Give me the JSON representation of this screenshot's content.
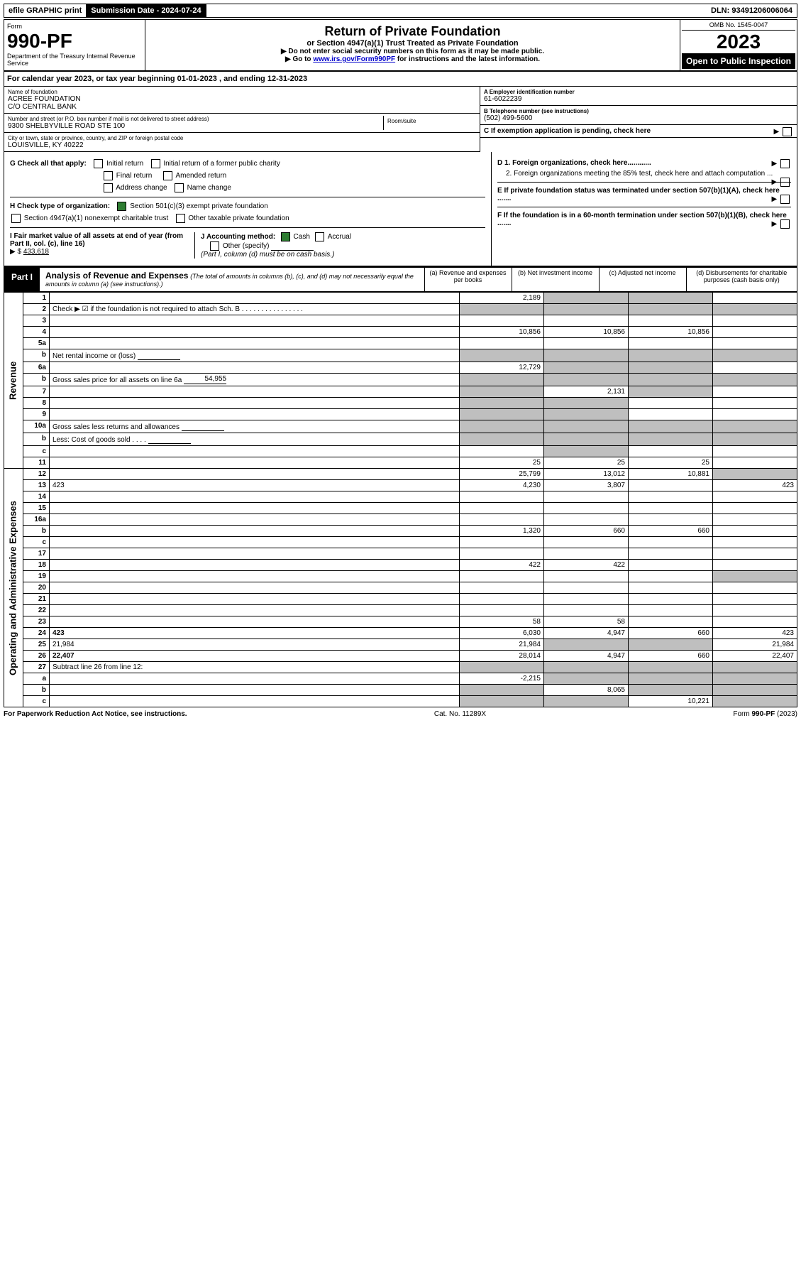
{
  "topbar": {
    "efile": "efile GRAPHIC print",
    "submission_label": "Submission Date - 2024-07-24",
    "dln": "DLN: 93491206006064"
  },
  "header": {
    "form_word": "Form",
    "form_number": "990-PF",
    "dept": "Department of the Treasury\nInternal Revenue Service",
    "title": "Return of Private Foundation",
    "subtitle": "or Section 4947(a)(1) Trust Treated as Private Foundation",
    "note1": "▶ Do not enter social security numbers on this form as it may be made public.",
    "note2_pre": "▶ Go to ",
    "note2_link": "www.irs.gov/Form990PF",
    "note2_post": " for instructions and the latest information.",
    "omb": "OMB No. 1545-0047",
    "year": "2023",
    "open": "Open to Public Inspection"
  },
  "calendar": {
    "text_pre": "For calendar year 2023, or tax year beginning ",
    "begin": "01-01-2023",
    "text_mid": " , and ending ",
    "end": "12-31-2023"
  },
  "info": {
    "name_lbl": "Name of foundation",
    "name1": "ACREE FOUNDATION",
    "name2": "C/O CENTRAL BANK",
    "addr_lbl": "Number and street (or P.O. box number if mail is not delivered to street address)",
    "addr": "9300 SHELBYVILLE ROAD STE 100",
    "room_lbl": "Room/suite",
    "city_lbl": "City or town, state or province, country, and ZIP or foreign postal code",
    "city": "LOUISVILLE, KY  40222",
    "a_lbl": "A Employer identification number",
    "a_val": "61-6022239",
    "b_lbl": "B Telephone number (see instructions)",
    "b_val": "(502) 499-5600",
    "c_lbl": "C If exemption application is pending, check here"
  },
  "g": {
    "label": "G Check all that apply:",
    "opts": [
      "Initial return",
      "Initial return of a former public charity",
      "Final return",
      "Amended return",
      "Address change",
      "Name change"
    ]
  },
  "h": {
    "label": "H Check type of organization:",
    "opt1": "Section 501(c)(3) exempt private foundation",
    "opt2": "Section 4947(a)(1) nonexempt charitable trust",
    "opt3": "Other taxable private foundation"
  },
  "i": {
    "label": "I Fair market value of all assets at end of year (from Part II, col. (c), line 16)",
    "arrow": "▶ $",
    "value": "433,618"
  },
  "j": {
    "label": "J Accounting method:",
    "cash": "Cash",
    "accrual": "Accrual",
    "other": "Other (specify)",
    "note": "(Part I, column (d) must be on cash basis.)"
  },
  "d": {
    "d1": "D 1. Foreign organizations, check here............",
    "d2": "2. Foreign organizations meeting the 85% test, check here and attach computation ...",
    "e": "E  If private foundation status was terminated under section 507(b)(1)(A), check here .......",
    "f": "F  If the foundation is in a 60-month termination under section 507(b)(1)(B), check here ......."
  },
  "part1": {
    "label": "Part I",
    "title": "Analysis of Revenue and Expenses",
    "note": "(The total of amounts in columns (b), (c), and (d) may not necessarily equal the amounts in column (a) (see instructions).)",
    "cols": {
      "a": "(a)   Revenue and expenses per books",
      "b": "(b)   Net investment income",
      "c": "(c)   Adjusted net income",
      "d": "(d)  Disbursements for charitable purposes (cash basis only)"
    }
  },
  "sides": {
    "rev": "Revenue",
    "exp": "Operating and Administrative Expenses"
  },
  "rows": [
    {
      "n": "1",
      "d": "",
      "a": "2,189",
      "b": "",
      "c": "",
      "grey": [
        "b",
        "c"
      ]
    },
    {
      "n": "2",
      "d": "Check ▶ ☑ if the foundation is not required to attach Sch. B   . . . . . . . . . . . . . . . .",
      "grey": [
        "a",
        "b",
        "c",
        "d"
      ],
      "noamt": true
    },
    {
      "n": "3",
      "d": "",
      "a": "",
      "b": "",
      "c": ""
    },
    {
      "n": "4",
      "d": "",
      "a": "10,856",
      "b": "10,856",
      "c": "10,856"
    },
    {
      "n": "5a",
      "d": "",
      "a": "",
      "b": "",
      "c": ""
    },
    {
      "n": "b",
      "d": "Net rental income or (loss)",
      "innerline": true,
      "grey": [
        "a",
        "b",
        "c",
        "d"
      ],
      "noamt": true
    },
    {
      "n": "6a",
      "d": "",
      "a": "12,729",
      "b": "",
      "c": "",
      "grey": [
        "b",
        "c"
      ]
    },
    {
      "n": "b",
      "d": "Gross sales price for all assets on line 6a",
      "innerline": true,
      "innerval": "54,955",
      "grey": [
        "a",
        "b",
        "c",
        "d"
      ],
      "noamt": true
    },
    {
      "n": "7",
      "d": "",
      "a": "",
      "b": "2,131",
      "c": "",
      "grey": [
        "a",
        "c"
      ]
    },
    {
      "n": "8",
      "d": "",
      "a": "",
      "b": "",
      "c": "",
      "grey": [
        "a",
        "b"
      ]
    },
    {
      "n": "9",
      "d": "",
      "a": "",
      "b": "",
      "c": "",
      "grey": [
        "a",
        "b"
      ]
    },
    {
      "n": "10a",
      "d": "Gross sales less returns and allowances",
      "innerline": true,
      "grey": [
        "a",
        "b",
        "c",
        "d"
      ],
      "noamt": true
    },
    {
      "n": "b",
      "d": "Less: Cost of goods sold   .  .  .  .",
      "innerline": true,
      "grey": [
        "a",
        "b",
        "c",
        "d"
      ],
      "noamt": true
    },
    {
      "n": "c",
      "d": "",
      "a": "",
      "b": "",
      "c": "",
      "grey": [
        "b"
      ]
    },
    {
      "n": "11",
      "d": "",
      "a": "25",
      "b": "25",
      "c": "25"
    },
    {
      "n": "12",
      "d": "",
      "a": "25,799",
      "b": "13,012",
      "c": "10,881",
      "bold": true,
      "grey": [
        "d"
      ]
    },
    {
      "n": "13",
      "d": "423",
      "a": "4,230",
      "b": "3,807",
      "c": ""
    },
    {
      "n": "14",
      "d": "",
      "a": "",
      "b": "",
      "c": ""
    },
    {
      "n": "15",
      "d": "",
      "a": "",
      "b": "",
      "c": ""
    },
    {
      "n": "16a",
      "d": "",
      "a": "",
      "b": "",
      "c": ""
    },
    {
      "n": "b",
      "d": "",
      "a": "1,320",
      "b": "660",
      "c": "660"
    },
    {
      "n": "c",
      "d": "",
      "a": "",
      "b": "",
      "c": ""
    },
    {
      "n": "17",
      "d": "",
      "a": "",
      "b": "",
      "c": ""
    },
    {
      "n": "18",
      "d": "",
      "a": "422",
      "b": "422",
      "c": ""
    },
    {
      "n": "19",
      "d": "",
      "a": "",
      "b": "",
      "c": "",
      "grey": [
        "d"
      ]
    },
    {
      "n": "20",
      "d": "",
      "a": "",
      "b": "",
      "c": ""
    },
    {
      "n": "21",
      "d": "",
      "a": "",
      "b": "",
      "c": ""
    },
    {
      "n": "22",
      "d": "",
      "a": "",
      "b": "",
      "c": ""
    },
    {
      "n": "23",
      "d": "",
      "a": "58",
      "b": "58",
      "c": ""
    },
    {
      "n": "24",
      "d": "423",
      "a": "6,030",
      "b": "4,947",
      "c": "660",
      "bold": true
    },
    {
      "n": "25",
      "d": "21,984",
      "a": "21,984",
      "b": "",
      "c": "",
      "grey": [
        "b",
        "c"
      ]
    },
    {
      "n": "26",
      "d": "22,407",
      "a": "28,014",
      "b": "4,947",
      "c": "660",
      "bold": true
    },
    {
      "n": "27",
      "d": "Subtract line 26 from line 12:",
      "grey": [
        "a",
        "b",
        "c",
        "d"
      ],
      "noamt": true
    },
    {
      "n": "a",
      "d": "",
      "a": "-2,215",
      "b": "",
      "c": "",
      "bold": true,
      "grey": [
        "b",
        "c",
        "d"
      ]
    },
    {
      "n": "b",
      "d": "",
      "a": "",
      "b": "8,065",
      "c": "",
      "bold": true,
      "grey": [
        "a",
        "c",
        "d"
      ]
    },
    {
      "n": "c",
      "d": "",
      "a": "",
      "b": "",
      "c": "10,221",
      "bold": true,
      "grey": [
        "a",
        "b",
        "d"
      ]
    }
  ],
  "footer": {
    "left": "For Paperwork Reduction Act Notice, see instructions.",
    "mid": "Cat. No. 11289X",
    "right": "Form 990-PF (2023)"
  }
}
